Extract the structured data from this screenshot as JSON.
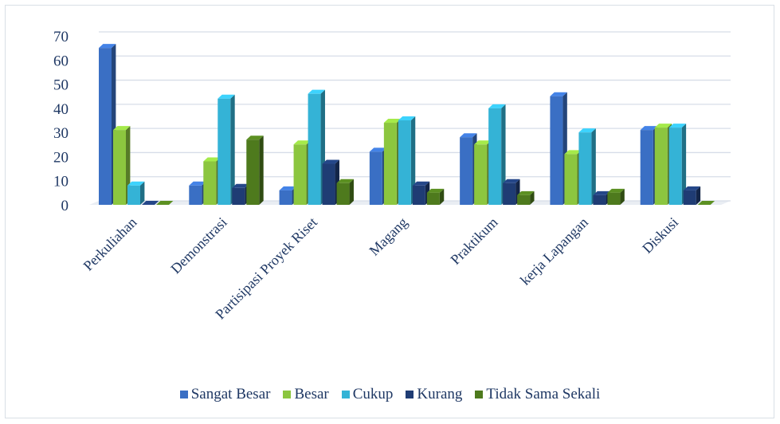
{
  "chart_data": {
    "type": "bar",
    "categories": [
      "Perkuliahan",
      "Demonstrasi",
      "Partisipasi Proyek Riset",
      "Magang",
      "Praktikum",
      "kerja Lapangan",
      "Diskusi"
    ],
    "series": [
      {
        "name": "Sangat Besar",
        "color": "#3a6fc4",
        "values": [
          65,
          8,
          6,
          22,
          28,
          45,
          31
        ]
      },
      {
        "name": "Besar",
        "color": "#8cc63f",
        "values": [
          31,
          18,
          25,
          34,
          25,
          21,
          32
        ]
      },
      {
        "name": "Cukup",
        "color": "#34b3d6",
        "values": [
          8,
          44,
          46,
          35,
          40,
          30,
          32
        ]
      },
      {
        "name": "Kurang",
        "color": "#1f3c74",
        "values": [
          0,
          7,
          17,
          8,
          9,
          4,
          6
        ]
      },
      {
        "name": "Tidak Sama Sekali",
        "color": "#4e7a1d",
        "values": [
          0,
          27,
          9,
          5,
          4,
          5,
          0
        ]
      }
    ],
    "yticks": [
      "0",
      "10",
      "20",
      "30",
      "40",
      "50",
      "60",
      "70"
    ],
    "ylim": [
      0,
      70
    ],
    "grid": true,
    "legend_position": "bottom",
    "title": "",
    "xlabel": "",
    "ylabel": ""
  }
}
